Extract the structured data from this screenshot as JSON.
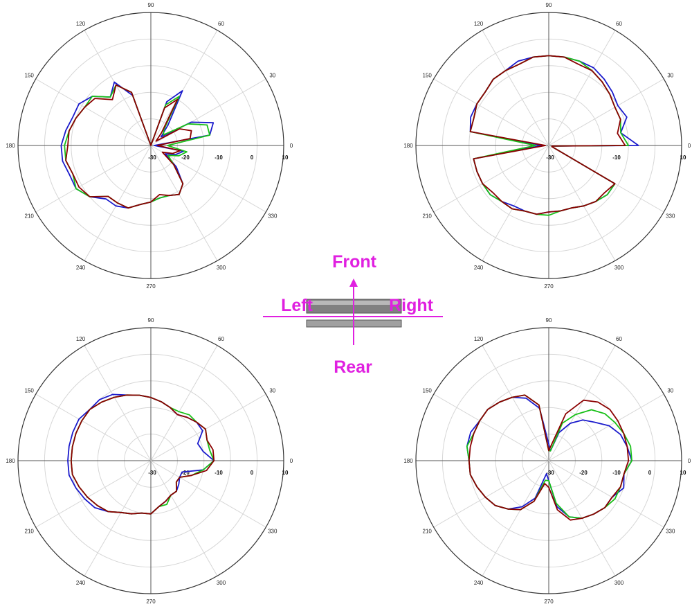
{
  "chart_data": [
    {
      "type": "polar-line",
      "angle_ticks": [
        "0",
        "30",
        "60",
        "90",
        "120",
        "150",
        "180",
        "210",
        "240",
        "270",
        "300",
        "330"
      ],
      "radial_ticks": [
        "-30",
        "-20",
        "-10",
        "0",
        "10"
      ],
      "rlim": [
        -30,
        10
      ],
      "grid": true,
      "series": [
        {
          "color": "#1a1acc",
          "theta": [
            0,
            10,
            20,
            30,
            40,
            50,
            60,
            70,
            80,
            90,
            100,
            110,
            120,
            130,
            140,
            150,
            160,
            170,
            180,
            190,
            200,
            210,
            220,
            230,
            240,
            250,
            260,
            270,
            280,
            290,
            300,
            310,
            320,
            330,
            340,
            350
          ],
          "r": [
            -29,
            -12,
            -10,
            -16,
            -26,
            -22,
            -11,
            -16,
            -30,
            -30,
            -30,
            -14,
            -8,
            -11,
            -7,
            -5,
            -5,
            -4,
            -3,
            -3,
            -4,
            -4,
            -6,
            -9,
            -9,
            -10,
            -12,
            -13,
            -14,
            -14,
            -13,
            -15,
            -20,
            -25,
            -22,
            -20
          ]
        },
        {
          "color": "#18c018",
          "theta": [
            0,
            10,
            20,
            30,
            40,
            50,
            60,
            70,
            80,
            90,
            100,
            110,
            120,
            130,
            140,
            150,
            160,
            170,
            180,
            190,
            200,
            210,
            220,
            230,
            240,
            250,
            260,
            270,
            280,
            290,
            300,
            310,
            320,
            330,
            340,
            350
          ],
          "r": [
            -25,
            -12,
            -12,
            -17,
            -25,
            -24,
            -13,
            -17,
            -30,
            -30,
            -30,
            -13,
            -9,
            -11,
            -7,
            -7,
            -6,
            -5,
            -4,
            -4,
            -5,
            -4,
            -6,
            -10,
            -10,
            -10,
            -12,
            -13,
            -14,
            -14,
            -13,
            -15,
            -21,
            -24,
            -21,
            -19
          ]
        },
        {
          "color": "#8b0000",
          "theta": [
            0,
            10,
            20,
            30,
            40,
            50,
            60,
            70,
            80,
            90,
            100,
            110,
            120,
            130,
            140,
            150,
            160,
            170,
            180,
            190,
            200,
            210,
            220,
            230,
            240,
            250,
            260,
            270,
            280,
            290,
            300,
            310,
            320,
            330,
            340,
            350
          ],
          "r": [
            -28,
            -18,
            -17,
            -20,
            -28,
            -25,
            -14,
            -18,
            -30,
            -30,
            -30,
            -13,
            -9,
            -12,
            -8,
            -7,
            -6,
            -5,
            -5,
            -4,
            -5,
            -5,
            -6,
            -10,
            -10,
            -10,
            -12,
            -13,
            -15,
            -14,
            -13,
            -15,
            -21,
            -26,
            -23,
            -21
          ]
        }
      ]
    },
    {
      "type": "polar-line",
      "angle_ticks": [
        "0",
        "30",
        "60",
        "90",
        "120",
        "150",
        "180",
        "210",
        "240",
        "270",
        "300",
        "330"
      ],
      "radial_ticks": [
        "-30",
        "-10",
        "10"
      ],
      "rlim": [
        -30,
        10
      ],
      "grid": true,
      "series": [
        {
          "color": "#1a1acc",
          "theta": [
            0,
            10,
            20,
            30,
            40,
            50,
            60,
            70,
            80,
            90,
            100,
            110,
            120,
            130,
            140,
            150,
            160,
            170,
            180,
            190,
            200,
            210,
            220,
            230,
            240,
            250,
            260,
            270,
            280,
            290,
            300,
            310,
            320,
            330,
            340,
            350
          ],
          "r": [
            -3,
            -8,
            -5,
            -6,
            -5,
            -4,
            -3,
            -3,
            -3,
            -3,
            -3,
            -3,
            -4,
            -4,
            -5,
            -5,
            -5,
            -6,
            -28,
            -7,
            -7,
            -7,
            -7,
            -8,
            -9,
            -9,
            -9,
            -10,
            -10,
            -10,
            -9,
            -8,
            -7,
            -7,
            -29,
            -29
          ]
        },
        {
          "color": "#18c018",
          "theta": [
            0,
            10,
            20,
            30,
            40,
            50,
            60,
            70,
            80,
            90,
            100,
            110,
            120,
            130,
            140,
            150,
            160,
            170,
            180,
            190,
            200,
            210,
            220,
            230,
            240,
            250,
            260,
            270,
            280,
            290,
            300,
            310,
            320,
            330,
            340,
            350
          ],
          "r": [
            -6,
            -8,
            -7,
            -7,
            -6,
            -5,
            -4,
            -3,
            -3,
            -3,
            -3,
            -4,
            -4,
            -4,
            -5,
            -5,
            -6,
            -6,
            -26,
            -7,
            -7,
            -7,
            -7,
            -8,
            -8,
            -9,
            -9,
            -9,
            -10,
            -10,
            -9,
            -8,
            -7,
            -7,
            -29,
            -29
          ]
        },
        {
          "color": "#8b0000",
          "theta": [
            0,
            10,
            20,
            30,
            40,
            50,
            60,
            70,
            80,
            90,
            100,
            110,
            120,
            130,
            140,
            150,
            160,
            170,
            180,
            190,
            200,
            210,
            220,
            230,
            240,
            250,
            260,
            270,
            280,
            290,
            300,
            310,
            320,
            330,
            340,
            350
          ],
          "r": [
            -7,
            -9,
            -7,
            -7,
            -6,
            -5,
            -4,
            -4,
            -3,
            -3,
            -3,
            -4,
            -4,
            -4,
            -5,
            -5,
            -6,
            -6,
            -29,
            -7,
            -7,
            -7,
            -8,
            -8,
            -8,
            -9,
            -9,
            -10,
            -10,
            -10,
            -9,
            -8,
            -8,
            -7,
            -29,
            -29
          ]
        }
      ]
    },
    {
      "type": "polar-line",
      "angle_ticks": [
        "0",
        "30",
        "60",
        "90",
        "120",
        "150",
        "180",
        "210",
        "240",
        "270",
        "300",
        "330"
      ],
      "radial_ticks": [
        "-30",
        "-20",
        "-10",
        "0",
        "10"
      ],
      "rlim": [
        -30,
        10
      ],
      "grid": true,
      "series": [
        {
          "color": "#1a1acc",
          "theta": [
            0,
            10,
            20,
            30,
            40,
            50,
            60,
            70,
            80,
            90,
            100,
            110,
            120,
            130,
            140,
            150,
            160,
            170,
            180,
            190,
            200,
            210,
            220,
            230,
            240,
            250,
            260,
            270,
            280,
            290,
            300,
            310,
            320,
            330,
            340,
            350
          ],
          "r": [
            -11,
            -14,
            -15,
            -12,
            -12,
            -13,
            -14,
            -13,
            -12,
            -11,
            -10,
            -9,
            -7,
            -6,
            -6,
            -5,
            -5,
            -5,
            -5,
            -5,
            -6,
            -7,
            -8,
            -10,
            -12,
            -13,
            -14,
            -14,
            -16,
            -17,
            -18,
            -18,
            -19,
            -20,
            -20,
            -14
          ]
        },
        {
          "color": "#18c018",
          "theta": [
            0,
            10,
            20,
            30,
            40,
            50,
            60,
            70,
            80,
            90,
            100,
            110,
            120,
            130,
            140,
            150,
            160,
            170,
            180,
            190,
            200,
            210,
            220,
            230,
            240,
            250,
            260,
            270,
            280,
            290,
            300,
            310,
            320,
            330,
            340,
            350
          ],
          "r": [
            -11,
            -12,
            -12,
            -11,
            -12,
            -12,
            -13,
            -13,
            -12,
            -11,
            -10,
            -9,
            -8,
            -7,
            -6,
            -6,
            -6,
            -6,
            -6,
            -6,
            -7,
            -8,
            -9,
            -10,
            -12,
            -13,
            -14,
            -14,
            -16,
            -16,
            -18,
            -18,
            -20,
            -20,
            -17,
            -14
          ]
        },
        {
          "color": "#8b0000",
          "theta": [
            0,
            10,
            20,
            30,
            40,
            50,
            60,
            70,
            80,
            90,
            100,
            110,
            120,
            130,
            140,
            150,
            160,
            170,
            180,
            190,
            200,
            210,
            220,
            230,
            240,
            250,
            260,
            270,
            280,
            290,
            300,
            310,
            320,
            330,
            340,
            350
          ],
          "r": [
            -11,
            -11,
            -12,
            -11,
            -12,
            -13,
            -14,
            -13,
            -12,
            -11,
            -10,
            -9,
            -8,
            -7,
            -6,
            -6,
            -6,
            -6,
            -6,
            -6,
            -7,
            -8,
            -9,
            -10,
            -12,
            -13,
            -14,
            -14,
            -16,
            -17,
            -18,
            -18,
            -20,
            -20,
            -17,
            -13
          ]
        }
      ]
    },
    {
      "type": "polar-line",
      "angle_ticks": [
        "0",
        "30",
        "60",
        "90",
        "120",
        "150",
        "180",
        "210",
        "240",
        "270",
        "300",
        "330"
      ],
      "radial_ticks": [
        "-30",
        "-20",
        "-10",
        "0",
        "10"
      ],
      "rlim": [
        -30,
        10
      ],
      "grid": true,
      "series": [
        {
          "color": "#1a1acc",
          "theta": [
            0,
            10,
            20,
            30,
            40,
            50,
            60,
            70,
            80,
            90,
            100,
            110,
            120,
            130,
            140,
            150,
            160,
            170,
            180,
            190,
            200,
            210,
            220,
            230,
            240,
            250,
            260,
            270,
            280,
            290,
            300,
            310,
            320,
            330,
            340,
            350
          ],
          "r": [
            -5,
            -6,
            -7,
            -9,
            -12,
            -14,
            -17,
            -21,
            -27,
            -25,
            -14,
            -10,
            -8,
            -7,
            -6,
            -6,
            -5,
            -5,
            -6,
            -6,
            -7,
            -8,
            -9,
            -11,
            -14,
            -18,
            -26,
            -24,
            -16,
            -12,
            -10,
            -9,
            -8,
            -8,
            -6,
            -7
          ]
        },
        {
          "color": "#18c018",
          "theta": [
            0,
            10,
            20,
            30,
            40,
            50,
            60,
            70,
            80,
            90,
            100,
            110,
            120,
            130,
            140,
            150,
            160,
            170,
            180,
            190,
            200,
            210,
            220,
            230,
            240,
            250,
            260,
            270,
            280,
            290,
            300,
            310,
            320,
            330,
            340,
            350
          ],
          "r": [
            -5,
            -5,
            -6,
            -7,
            -8,
            -10,
            -14,
            -18,
            -27,
            -27,
            -13,
            -9,
            -8,
            -7,
            -6,
            -6,
            -6,
            -5,
            -6,
            -6,
            -7,
            -8,
            -9,
            -11,
            -13,
            -17,
            -24,
            -24,
            -17,
            -12,
            -10,
            -9,
            -8,
            -7,
            -7,
            -7
          ]
        },
        {
          "color": "#8b0000",
          "theta": [
            0,
            10,
            20,
            30,
            40,
            50,
            60,
            70,
            80,
            90,
            100,
            110,
            120,
            130,
            140,
            150,
            160,
            170,
            180,
            190,
            200,
            210,
            220,
            230,
            240,
            250,
            260,
            270,
            280,
            290,
            300,
            310,
            320,
            330,
            340,
            350
          ],
          "r": [
            -6,
            -6,
            -6,
            -6,
            -6,
            -7,
            -9,
            -15,
            -25,
            -27,
            -13,
            -9,
            -8,
            -7,
            -6,
            -6,
            -6,
            -6,
            -6,
            -6,
            -7,
            -8,
            -9,
            -11,
            -13,
            -17,
            -23,
            -22,
            -15,
            -11,
            -10,
            -9,
            -8,
            -8,
            -7,
            -7
          ]
        }
      ]
    }
  ],
  "orientation_diagram": {
    "front_label": "Front",
    "rear_label": "Rear",
    "left_label": "Left",
    "right_label": "Right",
    "label_color": "#e020e0"
  }
}
